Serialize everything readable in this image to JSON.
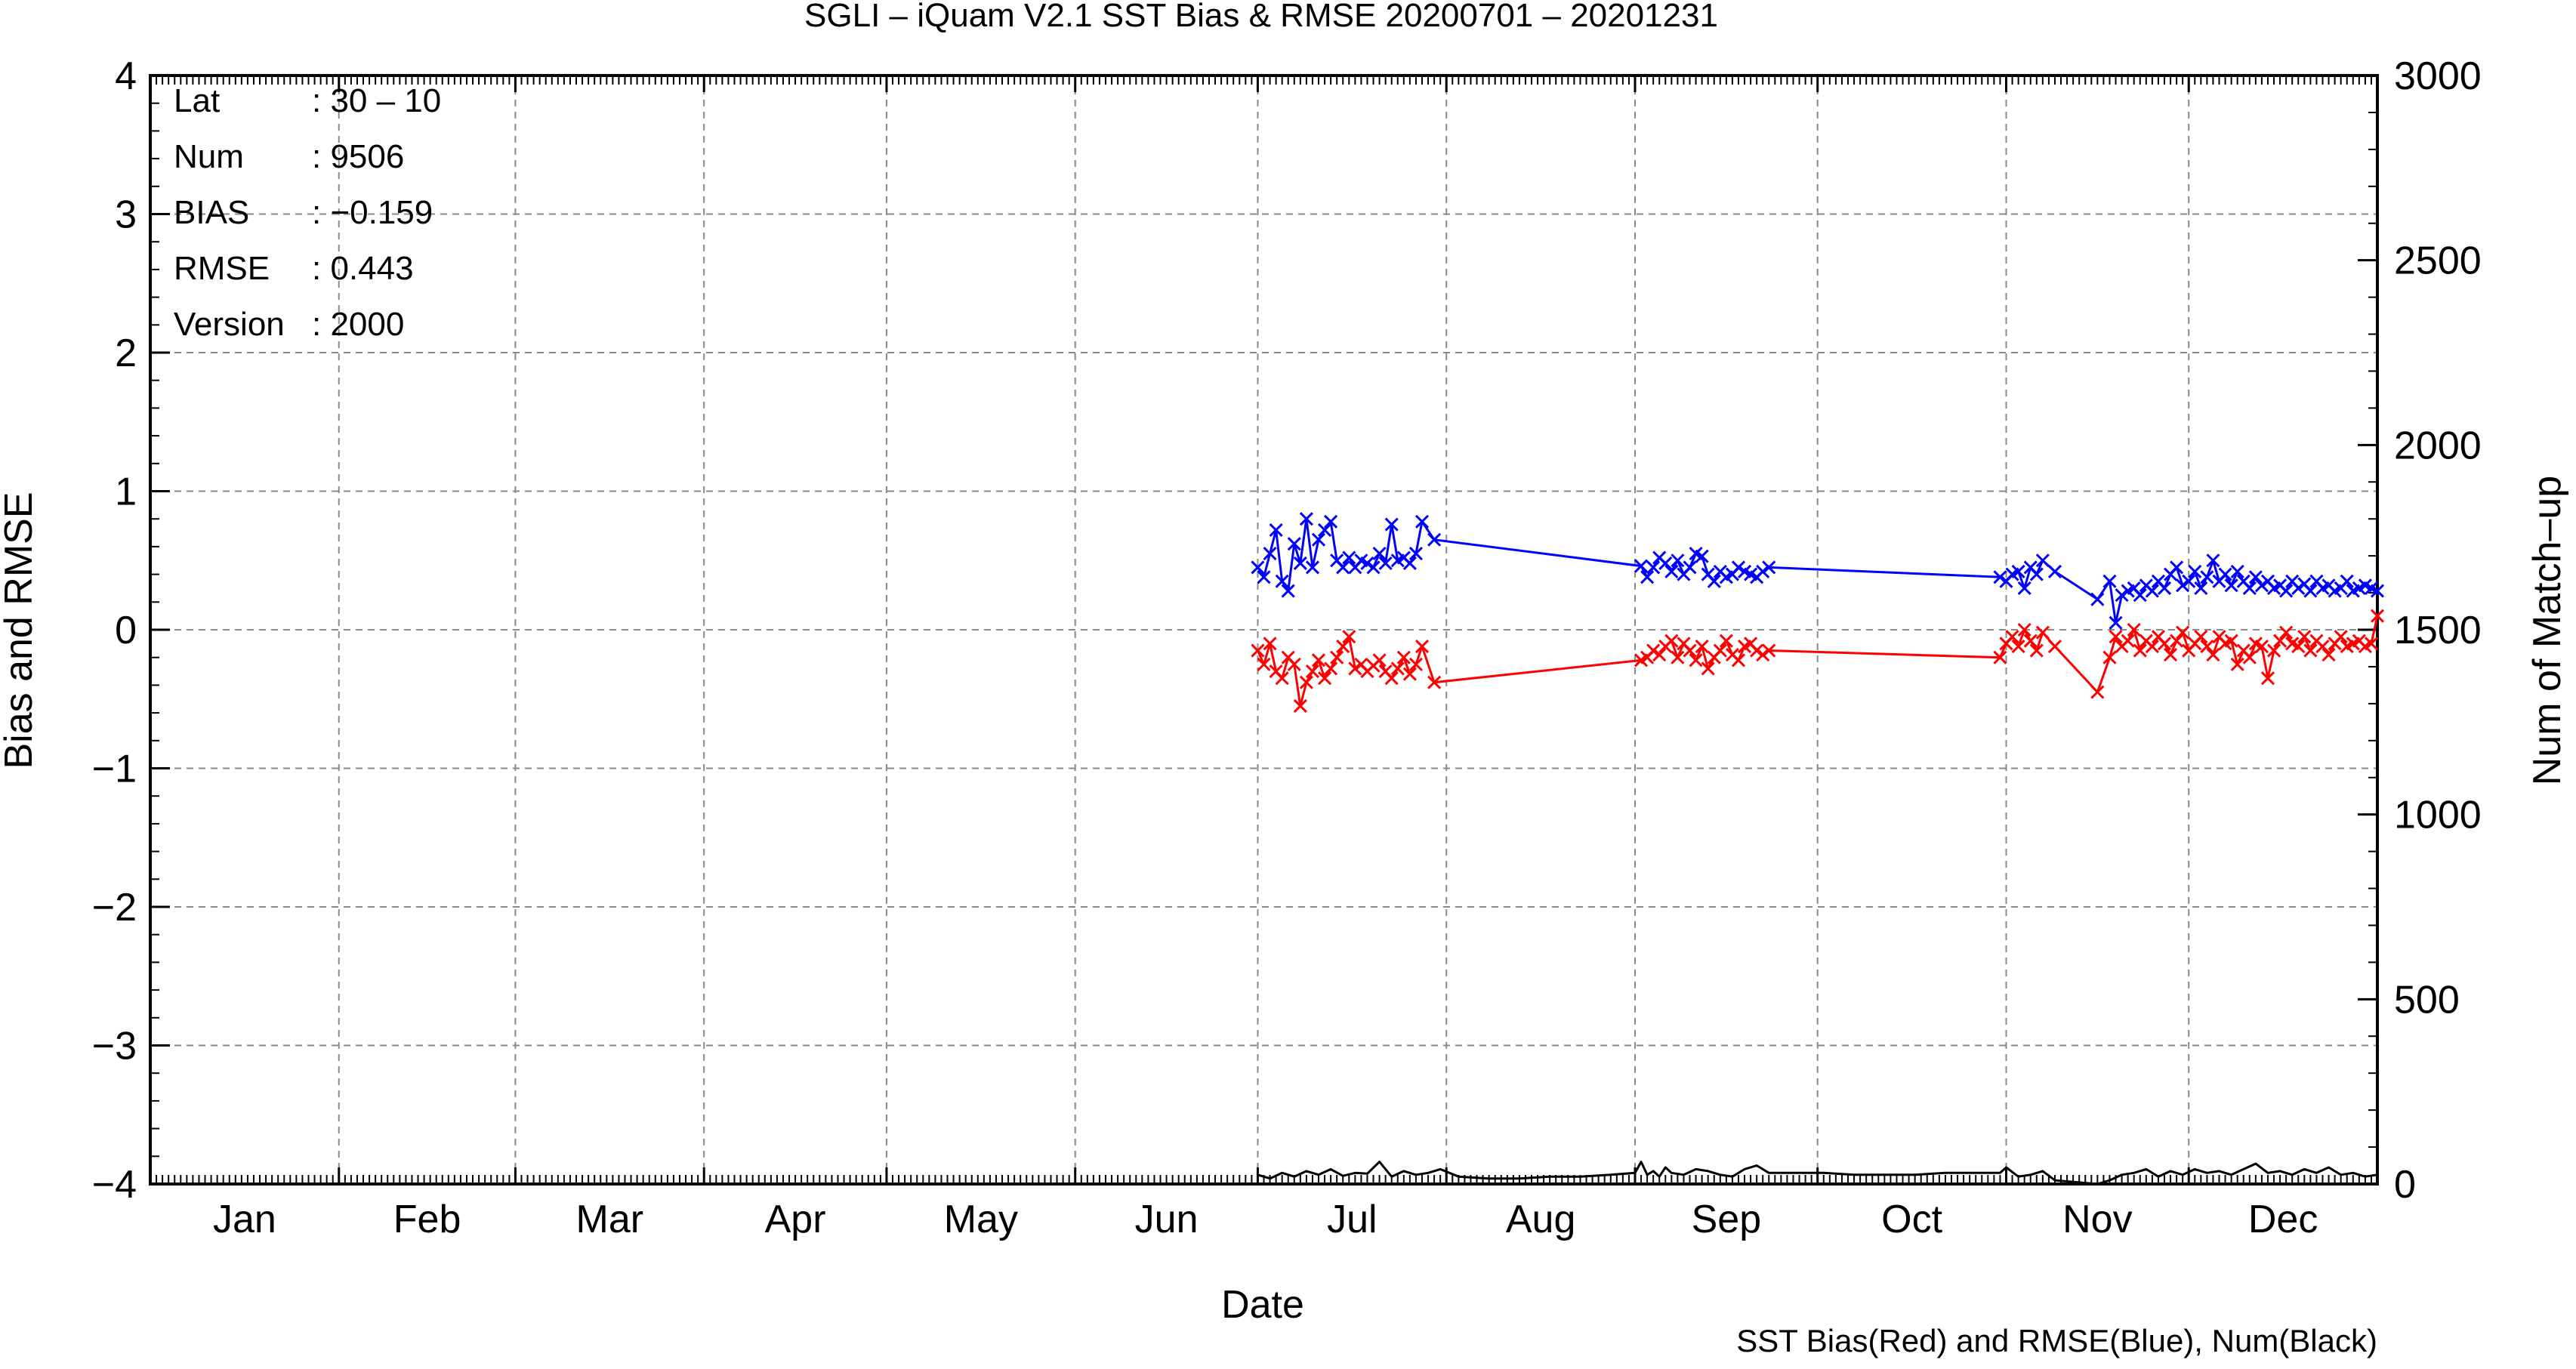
{
  "chart_data": {
    "type": "line",
    "title": "SGLI – iQuam V2.1 SST Bias & RMSE 20200701 – 20201231",
    "xlabel": "Date",
    "ylabel": "Bias and RMSE",
    "y2label": "Num of Match–up",
    "footnote": "SST Bias(Red) and RMSE(Blue), Num(Black)",
    "months": [
      "Jan",
      "Feb",
      "Mar",
      "Apr",
      "May",
      "Jun",
      "Jul",
      "Aug",
      "Sep",
      "Oct",
      "Nov",
      "Dec"
    ],
    "xlim": [
      0,
      366
    ],
    "ylim": [
      -4,
      4
    ],
    "y2lim": [
      0,
      3000
    ],
    "yticks": [
      "4",
      "3",
      "2",
      "1",
      "0",
      "−1",
      "−2",
      "−3",
      "−4"
    ],
    "y2ticks": [
      "3000",
      "2500",
      "2000",
      "1500",
      "1000",
      "500",
      "0"
    ],
    "grid": true,
    "stats": [
      {
        "label": "Lat",
        "value": ": 30 – 10"
      },
      {
        "label": "Num",
        "value": ": 9506"
      },
      {
        "label": "BIAS",
        "value": ": −0.159"
      },
      {
        "label": "RMSE",
        "value": ": 0.443"
      },
      {
        "label": "Version",
        "value": ": 2000"
      }
    ],
    "colors": {
      "bias": "#ff0000",
      "rmse": "#0000ff",
      "num": "#000000"
    },
    "series": [
      {
        "name": "RMSE",
        "axis": "left",
        "x": [
          182,
          183,
          184,
          185,
          186,
          187,
          188,
          189,
          190,
          191,
          192,
          193,
          194,
          195,
          196,
          197,
          198,
          199,
          200,
          201,
          202,
          203,
          204,
          205,
          206,
          207,
          208,
          209,
          211,
          245,
          246,
          247,
          248,
          249,
          250,
          251,
          252,
          253,
          254,
          255,
          256,
          257,
          258,
          259,
          260,
          261,
          262,
          263,
          264,
          265,
          266,
          304,
          305,
          306,
          307,
          308,
          309,
          310,
          311,
          313,
          320,
          322,
          323,
          324,
          325,
          326,
          327,
          328,
          329,
          330,
          331,
          332,
          333,
          334,
          335,
          336,
          337,
          338,
          339,
          340,
          341,
          342,
          343,
          344,
          345,
          346,
          347,
          348,
          349,
          350,
          351,
          352,
          353,
          354,
          355,
          356,
          357,
          358,
          359,
          360,
          361,
          362,
          363,
          364,
          365,
          366
        ],
        "y": [
          0.45,
          0.38,
          0.55,
          0.72,
          0.35,
          0.28,
          0.62,
          0.48,
          0.8,
          0.45,
          0.65,
          0.72,
          0.78,
          0.5,
          0.45,
          0.52,
          0.45,
          0.5,
          0.48,
          0.45,
          0.55,
          0.48,
          0.76,
          0.5,
          0.52,
          0.48,
          0.55,
          0.78,
          0.65,
          0.46,
          0.38,
          0.45,
          0.52,
          0.48,
          0.42,
          0.5,
          0.4,
          0.45,
          0.55,
          0.53,
          0.4,
          0.35,
          0.42,
          0.38,
          0.4,
          0.45,
          0.42,
          0.4,
          0.38,
          0.42,
          0.45,
          0.38,
          0.35,
          0.4,
          0.42,
          0.3,
          0.45,
          0.4,
          0.5,
          0.42,
          0.22,
          0.35,
          0.05,
          0.25,
          0.28,
          0.3,
          0.25,
          0.32,
          0.28,
          0.35,
          0.3,
          0.4,
          0.45,
          0.32,
          0.35,
          0.42,
          0.3,
          0.38,
          0.5,
          0.35,
          0.4,
          0.32,
          0.42,
          0.35,
          0.3,
          0.38,
          0.32,
          0.35,
          0.3,
          0.32,
          0.28,
          0.35,
          0.3,
          0.33,
          0.28,
          0.35,
          0.3,
          0.32,
          0.28,
          0.3,
          0.35,
          0.28,
          0.3,
          0.32,
          0.3,
          0.28
        ]
      },
      {
        "name": "Bias",
        "axis": "left",
        "x": [
          182,
          183,
          184,
          185,
          186,
          187,
          188,
          189,
          190,
          191,
          192,
          193,
          194,
          195,
          196,
          197,
          198,
          199,
          200,
          201,
          202,
          203,
          204,
          205,
          206,
          207,
          208,
          209,
          211,
          245,
          246,
          247,
          248,
          249,
          250,
          251,
          252,
          253,
          254,
          255,
          256,
          257,
          258,
          259,
          260,
          261,
          262,
          263,
          264,
          265,
          266,
          304,
          305,
          306,
          307,
          308,
          309,
          310,
          311,
          313,
          320,
          322,
          323,
          324,
          325,
          326,
          327,
          328,
          329,
          330,
          331,
          332,
          333,
          334,
          335,
          336,
          337,
          338,
          339,
          340,
          341,
          342,
          343,
          344,
          345,
          346,
          347,
          348,
          349,
          350,
          351,
          352,
          353,
          354,
          355,
          356,
          357,
          358,
          359,
          360,
          361,
          362,
          363,
          364,
          365,
          366
        ],
        "y": [
          -0.15,
          -0.25,
          -0.1,
          -0.3,
          -0.35,
          -0.2,
          -0.25,
          -0.55,
          -0.38,
          -0.3,
          -0.22,
          -0.35,
          -0.28,
          -0.2,
          -0.12,
          -0.05,
          -0.28,
          -0.25,
          -0.3,
          -0.26,
          -0.22,
          -0.3,
          -0.35,
          -0.28,
          -0.2,
          -0.32,
          -0.25,
          -0.12,
          -0.38,
          -0.22,
          -0.2,
          -0.15,
          -0.18,
          -0.12,
          -0.08,
          -0.2,
          -0.1,
          -0.15,
          -0.22,
          -0.12,
          -0.28,
          -0.2,
          -0.15,
          -0.08,
          -0.18,
          -0.22,
          -0.12,
          -0.1,
          -0.15,
          -0.18,
          -0.15,
          -0.2,
          -0.1,
          -0.05,
          -0.12,
          0.0,
          -0.08,
          -0.15,
          -0.02,
          -0.12,
          -0.45,
          -0.2,
          -0.05,
          -0.12,
          -0.08,
          0.0,
          -0.15,
          -0.08,
          -0.12,
          -0.05,
          -0.1,
          -0.18,
          -0.08,
          -0.02,
          -0.15,
          -0.1,
          -0.05,
          -0.12,
          -0.18,
          -0.05,
          -0.1,
          -0.08,
          -0.25,
          -0.15,
          -0.2,
          -0.1,
          -0.12,
          -0.35,
          -0.15,
          -0.08,
          -0.02,
          -0.1,
          -0.12,
          -0.05,
          -0.15,
          -0.08,
          -0.12,
          -0.18,
          -0.1,
          -0.05,
          -0.12,
          -0.1,
          -0.08,
          -0.12,
          -0.1,
          0.1
        ]
      },
      {
        "name": "Num",
        "axis": "right",
        "x": [
          182,
          184,
          186,
          188,
          190,
          192,
          194,
          196,
          198,
          200,
          202,
          204,
          206,
          208,
          210,
          212,
          215,
          220,
          225,
          230,
          235,
          240,
          244,
          245,
          246,
          247,
          248,
          249,
          250,
          252,
          254,
          256,
          258,
          260,
          262,
          264,
          266,
          270,
          275,
          280,
          285,
          290,
          295,
          300,
          304,
          305,
          307,
          309,
          311,
          313,
          320,
          322,
          324,
          326,
          328,
          330,
          332,
          334,
          336,
          338,
          340,
          342,
          344,
          346,
          348,
          350,
          352,
          354,
          356,
          358,
          360,
          362,
          364,
          366
        ],
        "y": [
          25,
          15,
          30,
          20,
          35,
          25,
          40,
          22,
          30,
          28,
          60,
          20,
          35,
          25,
          30,
          40,
          20,
          15,
          15,
          20,
          20,
          25,
          30,
          60,
          25,
          35,
          20,
          45,
          30,
          25,
          40,
          35,
          25,
          20,
          40,
          50,
          30,
          30,
          30,
          25,
          25,
          25,
          30,
          30,
          30,
          45,
          20,
          25,
          35,
          10,
          0,
          10,
          25,
          30,
          40,
          20,
          35,
          25,
          40,
          30,
          35,
          25,
          40,
          55,
          30,
          35,
          25,
          40,
          30,
          45,
          25,
          30,
          20,
          25
        ]
      }
    ]
  }
}
